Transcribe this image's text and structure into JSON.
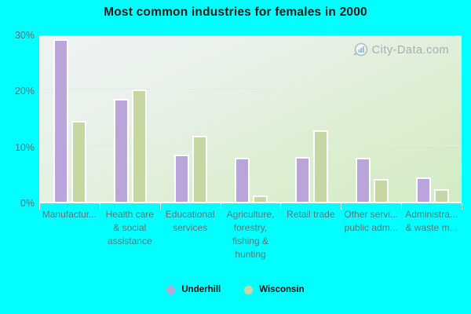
{
  "title": "Most common industries for females in 2000",
  "watermark": "City-Data.com",
  "colors": {
    "background": "#00ffff",
    "underhill_bar": "#b9a5d9",
    "wisconsin_bar": "#c6d7a2",
    "gridline": "#eee4ee",
    "axis_text": "#5a7478",
    "title_text": "#191919",
    "watermark_text": "#9aa4ad"
  },
  "y_axis": {
    "tick_labels": [
      "0%",
      "10%",
      "20%",
      "30%"
    ]
  },
  "legend": [
    {
      "label": "Underhill",
      "color": "#b9a5d9"
    },
    {
      "label": "Wisconsin",
      "color": "#c6d7a2"
    }
  ],
  "chart_data": {
    "type": "bar",
    "title": "Most common industries for females in 2000",
    "categories": [
      "Manufactur...",
      "Health care\n& social\nassistance",
      "Educational\nservices",
      "Agriculture,\nforestry,\nfishing &\nhunting",
      "Retail trade",
      "Other servi...\npublic adm...",
      "Administra...\n& waste m..."
    ],
    "series": [
      {
        "name": "Underhill",
        "color": "#b9a5d9",
        "values": [
          29.0,
          18.3,
          8.4,
          7.8,
          8.0,
          7.9,
          4.3
        ]
      },
      {
        "name": "Wisconsin",
        "color": "#c6d7a2",
        "values": [
          14.5,
          20.0,
          11.8,
          1.1,
          12.7,
          4.1,
          2.2
        ]
      }
    ],
    "xlabel": "",
    "ylabel": "",
    "ylim": [
      0,
      30
    ],
    "ytick_labels": [
      "0%",
      "10%",
      "20%",
      "30%"
    ],
    "grid": true,
    "legend_position": "bottom"
  }
}
